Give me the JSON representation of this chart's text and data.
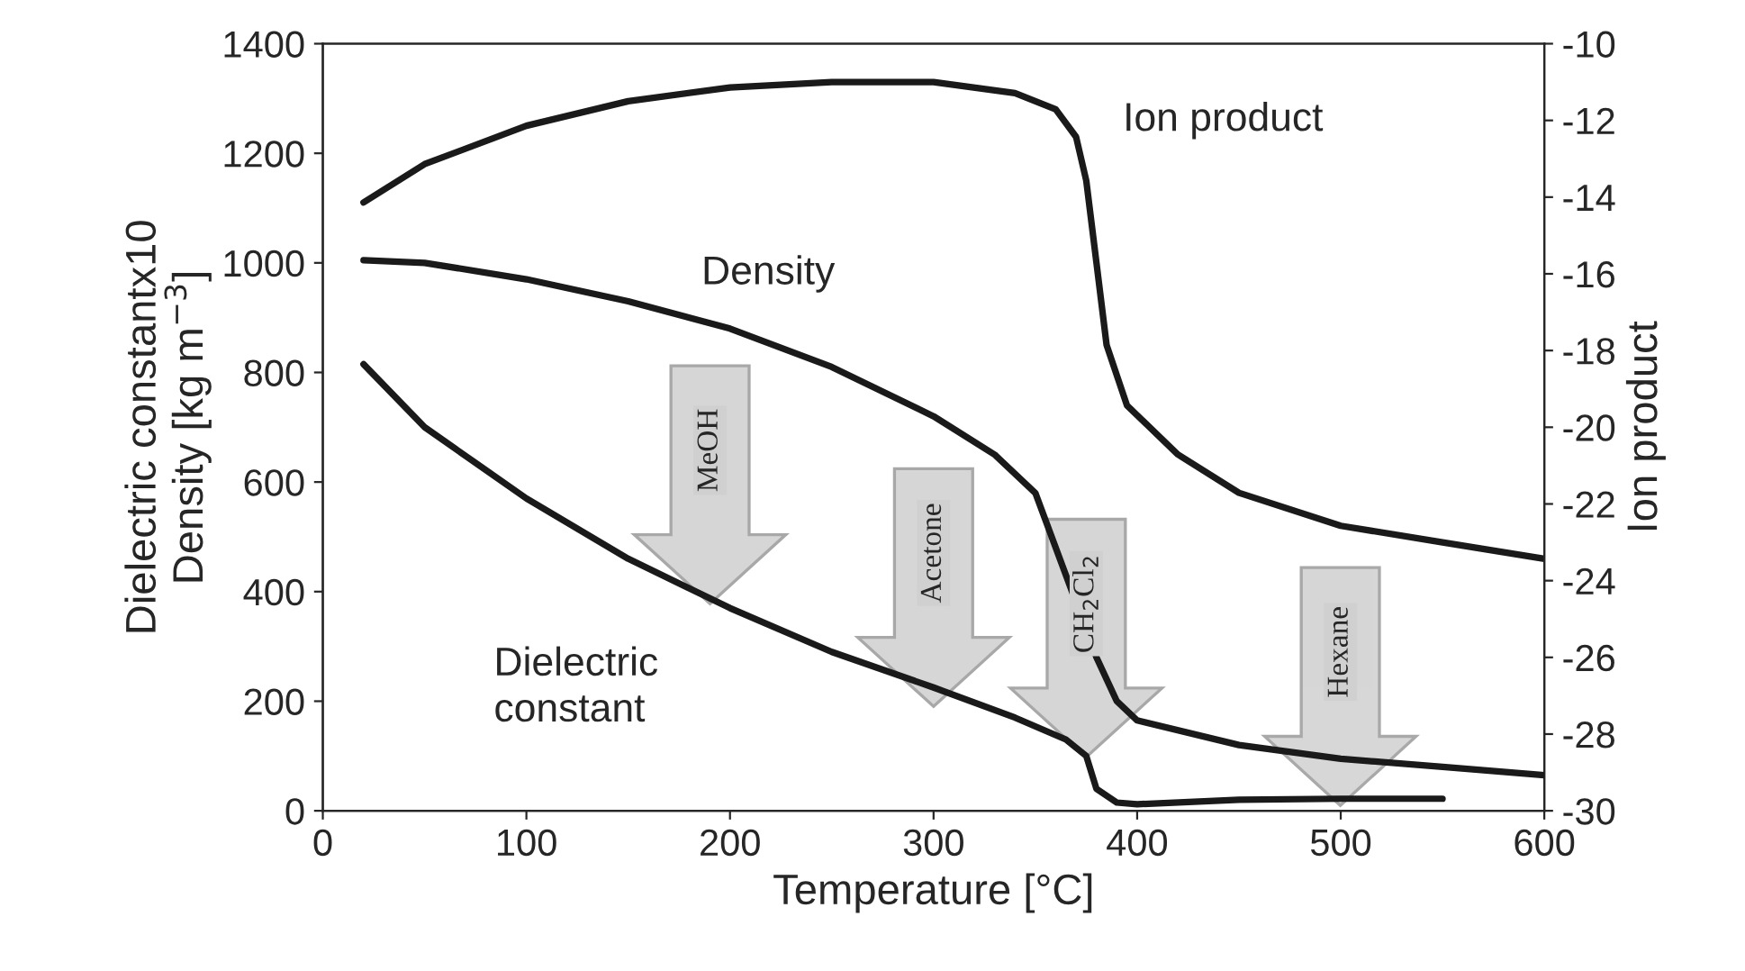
{
  "chart_data": {
    "type": "line",
    "xlabel": "Temperature [°C]",
    "ylabel": "Dielectric constantx10\nDensity [kg m$^{−3}$]",
    "y2label": "Ion product",
    "xlim": [
      0,
      600
    ],
    "xticks": [
      0,
      100,
      200,
      300,
      400,
      500,
      600
    ],
    "ylim": [
      0,
      1400
    ],
    "yticks": [
      0,
      200,
      400,
      600,
      800,
      1000,
      1200,
      1400
    ],
    "y2lim": [
      -30,
      -10
    ],
    "y2ticks": [
      -30,
      -28,
      -26,
      -24,
      -22,
      -20,
      -18,
      -16,
      -14,
      -12,
      -10
    ],
    "grid": false,
    "legend": false,
    "marker": "none",
    "line_style": "solid",
    "series": [
      {
        "name": "Ion product",
        "color": "#1a1a1a",
        "axis": "y2",
        "x": [
          20,
          50,
          100,
          150,
          200,
          250,
          300,
          340,
          360,
          370,
          375,
          380,
          385,
          395,
          420,
          450,
          500,
          550,
          600
        ],
        "values": [
          -14.14,
          -13.14,
          -12.14,
          -11.5,
          -11.14,
          -11.0,
          -11.0,
          -11.29,
          -11.71,
          -12.43,
          -13.57,
          -15.71,
          -17.86,
          -19.43,
          -20.71,
          -21.71,
          -22.57,
          -23.0,
          -23.43
        ]
      },
      {
        "name": "Density",
        "color": "#1a1a1a",
        "x": [
          20,
          50,
          100,
          150,
          200,
          250,
          300,
          330,
          350,
          380,
          390,
          400,
          450,
          500,
          550,
          600
        ],
        "values": [
          1005,
          1000,
          970,
          930,
          880,
          810,
          720,
          650,
          580,
          280,
          200,
          165,
          120,
          95,
          80,
          65
        ]
      },
      {
        "name": "Dielectric\nconstant",
        "color": "#1a1a1a",
        "x": [
          20,
          50,
          100,
          150,
          200,
          250,
          300,
          340,
          365,
          375,
          380,
          390,
          400,
          450,
          500,
          550
        ],
        "values": [
          815,
          700,
          570,
          460,
          370,
          290,
          225,
          170,
          130,
          100,
          40,
          15,
          12,
          20,
          22,
          22
        ]
      }
    ],
    "annotations": [
      "MeOH",
      "Acetone",
      "CH$_{2}$Cl$_{2}$",
      "Hexane"
    ]
  }
}
